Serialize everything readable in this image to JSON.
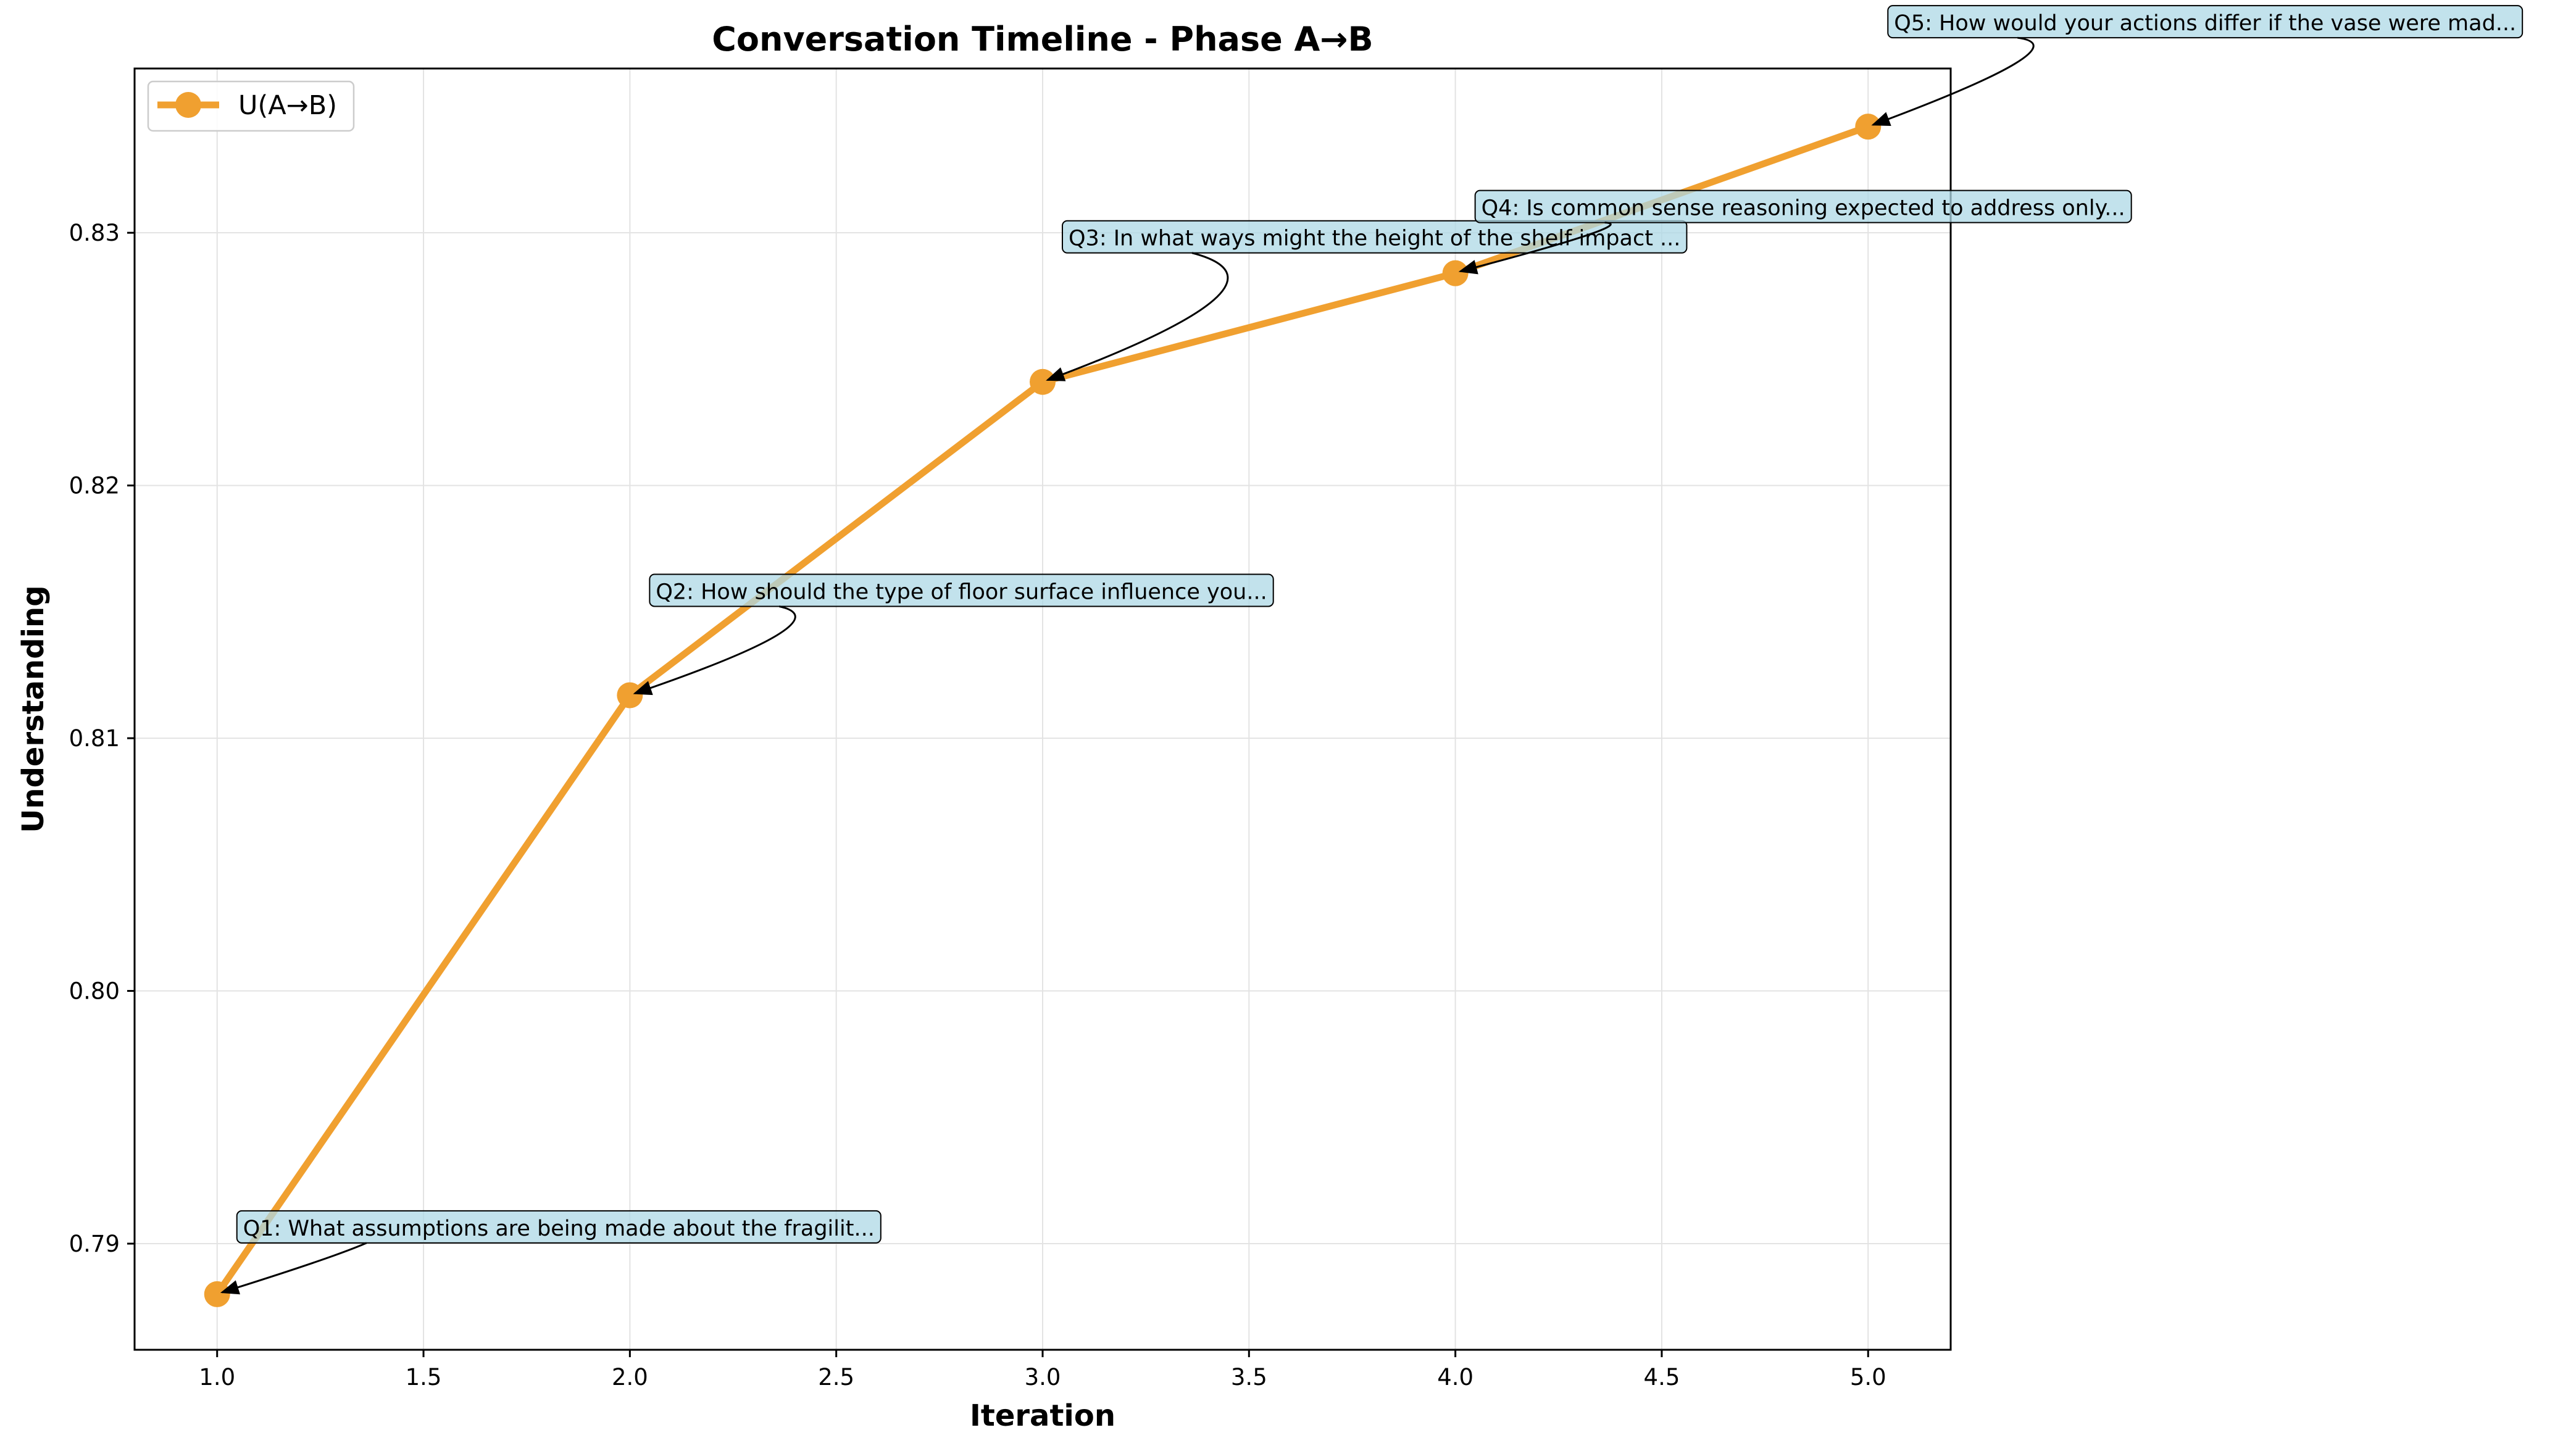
{
  "chart_data": {
    "type": "line",
    "title": "Conversation Timeline - Phase A→B",
    "xlabel": "Iteration",
    "ylabel": "Understanding",
    "xlim": [
      0.8,
      5.2
    ],
    "ylim": [
      0.7858,
      0.8365
    ],
    "x_ticks": [
      1.0,
      1.5,
      2.0,
      2.5,
      3.0,
      3.5,
      4.0,
      4.5,
      5.0
    ],
    "x_tick_labels": [
      "1.0",
      "1.5",
      "2.0",
      "2.5",
      "3.0",
      "3.5",
      "4.0",
      "4.5",
      "5.0"
    ],
    "y_ticks": [
      0.79,
      0.8,
      0.81,
      0.82,
      0.83
    ],
    "y_tick_labels": [
      "0.79",
      "0.80",
      "0.81",
      "0.82",
      "0.83"
    ],
    "grid": true,
    "legend_position": "top-left",
    "series": [
      {
        "name": "U(A→B)",
        "color": "#f0a030",
        "x": [
          1,
          2,
          3,
          4,
          5
        ],
        "y": [
          0.788,
          0.8117,
          0.8241,
          0.8284,
          0.8342
        ]
      }
    ],
    "annotations": [
      {
        "text": "Q1: What assumptions are being made about the fragilit...",
        "x": 1,
        "y": 0.788
      },
      {
        "text": "Q2: How should the type of floor surface influence you...",
        "x": 2,
        "y": 0.8117
      },
      {
        "text": "Q3: In what ways might the height of the shelf impact ...",
        "x": 3,
        "y": 0.8241
      },
      {
        "text": "Q4: Is common sense reasoning expected to address only...",
        "x": 4,
        "y": 0.8284
      },
      {
        "text": "Q5: How would your actions differ if the vase were mad...",
        "x": 5,
        "y": 0.8342
      }
    ]
  }
}
